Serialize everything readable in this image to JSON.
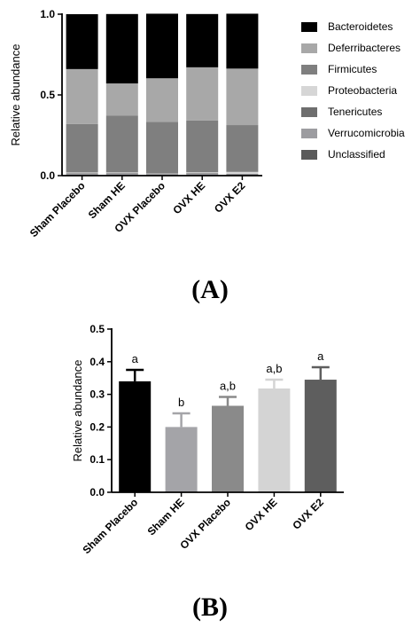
{
  "panel_labels": [
    "(A)",
    "(B)"
  ],
  "chart_data": [
    {
      "type": "bar",
      "stacked": true,
      "categories": [
        "Sham Placebo",
        "Sham HE",
        "OVX Placebo",
        "OVX HE",
        "OVX E2"
      ],
      "ylabel": "Relative abundance",
      "ylim": [
        0,
        1.0
      ],
      "yticks": [
        "0.0",
        "0.5",
        "1.0"
      ],
      "legend_position": "right",
      "grid": false,
      "series": [
        {
          "name": "Unclassified",
          "color": "#5a5a5a",
          "values": [
            0.003,
            0.003,
            0.003,
            0.003,
            0.003
          ]
        },
        {
          "name": "Verrucomicrobia",
          "color": "#9c9ca0",
          "values": [
            0.007,
            0.012,
            0.005,
            0.01,
            0.006
          ]
        },
        {
          "name": "Tenericutes",
          "color": "#6e6e6e",
          "values": [
            0.004,
            0.003,
            0.002,
            0.003,
            0.002
          ]
        },
        {
          "name": "Proteobacteria",
          "color": "#d6d6d6",
          "values": [
            0.006,
            0.003,
            0.003,
            0.005,
            0.012
          ]
        },
        {
          "name": "Firmicutes",
          "color": "#7f7f7f",
          "values": [
            0.3,
            0.35,
            0.32,
            0.32,
            0.29
          ]
        },
        {
          "name": "Deferribacteres",
          "color": "#a8a8a8",
          "values": [
            0.34,
            0.2,
            0.27,
            0.33,
            0.35
          ]
        },
        {
          "name": "Bacteroidetes",
          "color": "#000000",
          "values": [
            0.34,
            0.43,
            0.4,
            0.33,
            0.34
          ]
        }
      ],
      "legend_order": [
        "Bacteroidetes",
        "Deferribacteres",
        "Firmicutes",
        "Proteobacteria",
        "Tenericutes",
        "Verrucomicrobia",
        "Unclassified"
      ]
    },
    {
      "type": "bar",
      "categories": [
        "Sham Placebo",
        "Sham HE",
        "OVX Placebo",
        "OVX HE",
        "OVX E2"
      ],
      "values": [
        0.34,
        0.2,
        0.265,
        0.318,
        0.345
      ],
      "errors": [
        0.035,
        0.042,
        0.027,
        0.027,
        0.038
      ],
      "colors": [
        "#000000",
        "#a4a4a8",
        "#8a8a8a",
        "#d4d4d4",
        "#5e5e5e"
      ],
      "annotations": [
        "a",
        "b",
        "a,b",
        "a,b",
        "a"
      ],
      "ylabel": "Relative abundance",
      "ylim": [
        0,
        0.5
      ],
      "yticks": [
        "0.0",
        "0.1",
        "0.2",
        "0.3",
        "0.4",
        "0.5"
      ],
      "grid": false
    }
  ]
}
